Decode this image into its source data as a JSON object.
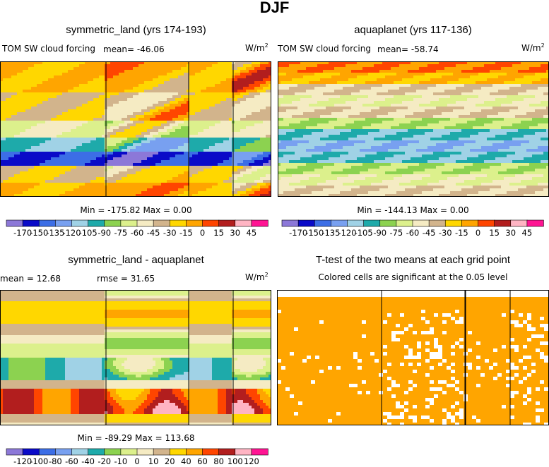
{
  "season": "DJF",
  "units": "W/m",
  "units_exp": "2",
  "colors": {
    "scale1": [
      "#8c78d8",
      "#0a0ac8",
      "#3c6ee6",
      "#78a0f0",
      "#a0d2e6",
      "#1eaaaa",
      "#8cd250",
      "#dcf08c",
      "#f5ebc3",
      "#d2b48c",
      "#ffd700",
      "#ffa500",
      "#ff4500",
      "#b21e1e",
      "#ffb4c3",
      "#ff1493"
    ],
    "diff_scale": [
      "#8c78d8",
      "#0a0ac8",
      "#3c6ee6",
      "#78a0f0",
      "#a0d2e6",
      "#1eaaaa",
      "#8cd250",
      "#dcf08c",
      "#f5ebc3",
      "#d2b48c",
      "#ffd700",
      "#ffa500",
      "#ff4500",
      "#b21e1e",
      "#ffb4c3",
      "#ff1493"
    ],
    "significant": "#ffa500",
    "not_significant": "#ffffff"
  },
  "panels": {
    "symmetric_land": {
      "title": "symmetric_land (yrs 174-193)",
      "variable": "TOM SW cloud forcing",
      "mean_label": "mean= -46.06",
      "minmax": "Min = -175.82 Max =    0.00"
    },
    "aquaplanet": {
      "title": "aquaplanet (yrs 117-136)",
      "variable": "TOM SW cloud forcing",
      "mean_label": "mean= -58.74",
      "minmax": "Min = -144.13 Max =    0.00"
    },
    "difference": {
      "title": "symmetric_land - aquaplanet",
      "mean_label": "mean =   12.68",
      "rmse_label": "rmse =   31.65",
      "minmax": "Min = -89.29 Max = 113.68"
    },
    "ttest": {
      "title": "T-test of the two means at each grid point",
      "subtitle": "Colored cells are significant at the 0.05 level"
    }
  },
  "chart_data": [
    {
      "type": "heatmap",
      "title": "symmetric_land (yrs 174-193)",
      "variable": "TOM SW cloud forcing",
      "units": "W/m2",
      "mean": -46.06,
      "min": -175.82,
      "max": 0.0,
      "colorbar_levels": [
        -170,
        -150,
        -135,
        -120,
        -105,
        -90,
        -75,
        -60,
        -45,
        -30,
        -15,
        0,
        15,
        30,
        45
      ],
      "colorbar_labels": [
        "-170",
        "-150",
        "-135",
        "-120",
        "-105",
        "-90",
        "-75",
        "-60",
        "-45",
        "-30",
        "-15",
        "0",
        "15",
        "30",
        "45"
      ],
      "region_bands_top_to_bottom": [
        -15,
        -15,
        -30,
        -30,
        -60,
        -105,
        -150,
        -30,
        -15
      ],
      "continents": true
    },
    {
      "type": "heatmap",
      "title": "aquaplanet (yrs 117-136)",
      "variable": "TOM SW cloud forcing",
      "units": "W/m2",
      "mean": -58.74,
      "min": -144.13,
      "max": 0.0,
      "colorbar_levels": [
        -170,
        -150,
        -135,
        -120,
        -105,
        -90,
        -75,
        -60,
        -45,
        -30,
        -15,
        0,
        15,
        30,
        45
      ],
      "colorbar_labels": [
        "-170",
        "-150",
        "-135",
        "-120",
        "-105",
        "-90",
        "-75",
        "-60",
        "-45",
        "-30",
        "-15",
        "0",
        "15",
        "30",
        "45"
      ],
      "zonal_bands_top_to_bottom": [
        0,
        -15,
        -45,
        -60,
        -45,
        -75,
        -105,
        -120,
        -105,
        -75,
        -60,
        -45
      ],
      "continents": false
    },
    {
      "type": "heatmap",
      "title": "symmetric_land - aquaplanet",
      "units": "W/m2",
      "mean": 12.68,
      "rmse": 31.65,
      "min": -89.29,
      "max": 113.68,
      "colorbar_levels": [
        -120,
        -100,
        -80,
        -60,
        -40,
        -20,
        -10,
        0,
        10,
        20,
        40,
        60,
        80,
        100,
        120
      ],
      "colorbar_labels": [
        "-120",
        "-100",
        "-80",
        "-60",
        "-40",
        "-20",
        "-10",
        "0",
        "10",
        "20",
        "40",
        "60",
        "80",
        "100",
        "120"
      ]
    },
    {
      "type": "heatmap",
      "title": "T-test of the two means at each grid point",
      "subtitle": "Colored cells are significant at the 0.05 level",
      "significance_level": 0.05
    }
  ]
}
